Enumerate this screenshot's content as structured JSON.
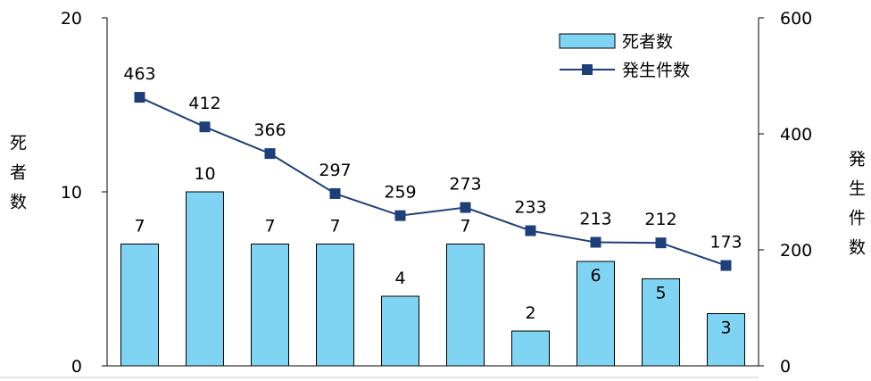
{
  "chart_data": {
    "type": "bar+line",
    "categories": [
      "",
      "",
      "",
      "",
      "",
      "",
      "",
      "",
      "",
      ""
    ],
    "series": [
      {
        "name": "死者数",
        "kind": "bar",
        "axis": "left",
        "color": "#7fd4f4",
        "values": [
          7,
          10,
          7,
          7,
          4,
          7,
          2,
          6,
          5,
          3
        ],
        "labels": [
          "7",
          "10",
          "7",
          "7",
          "4",
          "7",
          "2",
          "6",
          "5",
          "3"
        ]
      },
      {
        "name": "発生件数",
        "kind": "line",
        "axis": "right",
        "color": "#1f3f7a",
        "values": [
          463,
          412,
          366,
          297,
          259,
          273,
          233,
          213,
          212,
          173
        ],
        "labels": [
          "463",
          "412",
          "366",
          "297",
          "259",
          "273",
          "233",
          "213",
          "212",
          "173"
        ]
      }
    ],
    "ylabel_left": "死者数",
    "ylabel_right": "発生件数",
    "ylim_left": [
      0,
      20
    ],
    "ylim_right": [
      0,
      600
    ],
    "left_ticks": [
      "0",
      "10",
      "20"
    ],
    "right_ticks": [
      "0",
      "200",
      "400",
      "600"
    ],
    "grid": false,
    "legend_position": "top-right"
  }
}
